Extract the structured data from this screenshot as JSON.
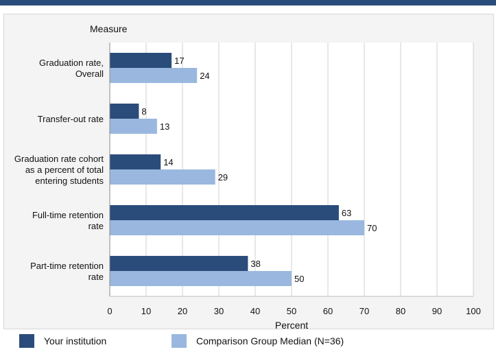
{
  "chart_data": {
    "type": "bar",
    "orientation": "horizontal",
    "category_axis_title": "Measure",
    "xlabel": "Percent",
    "xlim": [
      0,
      100
    ],
    "xticks": [
      0,
      10,
      20,
      30,
      40,
      50,
      60,
      70,
      80,
      90,
      100
    ],
    "grid": true,
    "categories": [
      [
        "Graduation rate,",
        "Overall"
      ],
      [
        "Transfer-out rate"
      ],
      [
        "Graduation rate cohort",
        "as a percent of total",
        "entering students"
      ],
      [
        "Full-time retention",
        "rate"
      ],
      [
        "Part-time retention",
        "rate"
      ]
    ],
    "series": [
      {
        "name": "Your institution",
        "color": "#2a4c7a",
        "values": [
          17,
          8,
          14,
          63,
          38
        ]
      },
      {
        "name": "Comparison Group Median (N=36)",
        "color": "#9ab8df",
        "values": [
          24,
          13,
          29,
          70,
          50
        ]
      }
    ],
    "legend_position": "bottom"
  }
}
